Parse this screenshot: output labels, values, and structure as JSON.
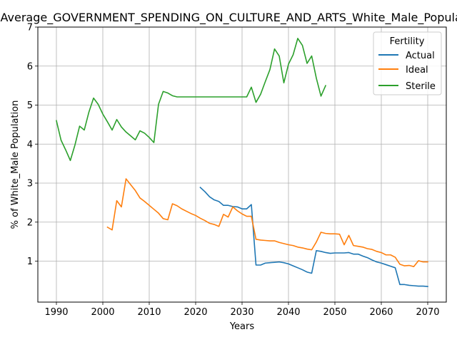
{
  "chart_data": {
    "type": "line",
    "title": "Average_GOVERNMENT_SPENDING_ON_CULTURE_AND_ARTS_White_Male_Population",
    "xlabel": "Years",
    "ylabel": "% of White_Male Population",
    "xlim": [
      1986,
      2074
    ],
    "ylim": [
      -0.05,
      7.0
    ],
    "xticks": [
      1990,
      2000,
      2010,
      2020,
      2030,
      2040,
      2050,
      2060,
      2070
    ],
    "yticks": [
      1,
      2,
      3,
      4,
      5,
      6,
      7
    ],
    "grid": true,
    "legend": {
      "title": "Fertility",
      "placement": "top-right"
    },
    "series": [
      {
        "name": "Actual",
        "color": "#1f77b4",
        "x": [
          2021,
          2022,
          2023,
          2024,
          2025,
          2026,
          2027,
          2028,
          2029,
          2030,
          2031,
          2032,
          2033,
          2034,
          2035,
          2036,
          2037,
          2038,
          2039,
          2040,
          2041,
          2042,
          2043,
          2044,
          2045,
          2046,
          2047,
          2048,
          2049,
          2050,
          2051,
          2052,
          2053,
          2054,
          2055,
          2056,
          2057,
          2058,
          2059,
          2060,
          2061,
          2062,
          2063,
          2064,
          2065,
          2066,
          2067,
          2068,
          2069,
          2070
        ],
        "values": [
          2.89,
          2.78,
          2.65,
          2.57,
          2.53,
          2.43,
          2.43,
          2.4,
          2.39,
          2.34,
          2.34,
          2.45,
          0.9,
          0.9,
          0.95,
          0.96,
          0.97,
          0.98,
          0.96,
          0.93,
          0.88,
          0.83,
          0.78,
          0.72,
          0.69,
          1.27,
          1.25,
          1.22,
          1.2,
          1.21,
          1.21,
          1.21,
          1.22,
          1.18,
          1.18,
          1.13,
          1.09,
          1.03,
          0.98,
          0.95,
          0.91,
          0.87,
          0.83,
          0.4,
          0.4,
          0.38,
          0.37,
          0.36,
          0.36,
          0.35
        ]
      },
      {
        "name": "Ideal",
        "color": "#ff7f0e",
        "x": [
          2001,
          2002,
          2003,
          2004,
          2005,
          2006,
          2007,
          2008,
          2009,
          2010,
          2011,
          2012,
          2013,
          2014,
          2015,
          2016,
          2017,
          2018,
          2019,
          2020,
          2021,
          2022,
          2023,
          2024,
          2025,
          2026,
          2027,
          2028,
          2029,
          2030,
          2031,
          2032,
          2033,
          2034,
          2035,
          2036,
          2037,
          2038,
          2039,
          2040,
          2041,
          2042,
          2043,
          2044,
          2045,
          2046,
          2047,
          2048,
          2049,
          2050,
          2051,
          2052,
          2053,
          2054,
          2055,
          2056,
          2057,
          2058,
          2059,
          2060,
          2061,
          2062,
          2063,
          2064,
          2065,
          2066,
          2067,
          2068,
          2069,
          2070
        ],
        "values": [
          1.87,
          1.8,
          2.55,
          2.39,
          3.11,
          2.96,
          2.81,
          2.62,
          2.53,
          2.43,
          2.33,
          2.23,
          2.09,
          2.06,
          2.47,
          2.42,
          2.34,
          2.28,
          2.22,
          2.17,
          2.1,
          2.04,
          1.97,
          1.94,
          1.89,
          2.2,
          2.13,
          2.39,
          2.29,
          2.21,
          2.15,
          2.15,
          1.56,
          1.54,
          1.53,
          1.52,
          1.52,
          1.48,
          1.45,
          1.42,
          1.4,
          1.36,
          1.34,
          1.31,
          1.29,
          1.49,
          1.74,
          1.71,
          1.7,
          1.7,
          1.69,
          1.42,
          1.66,
          1.4,
          1.38,
          1.36,
          1.32,
          1.3,
          1.25,
          1.22,
          1.16,
          1.16,
          1.1,
          0.92,
          0.88,
          0.89,
          0.86,
          1.01,
          0.98,
          0.98
        ]
      },
      {
        "name": "Sterile",
        "color": "#2ca02c",
        "x": [
          1990,
          1991,
          1992,
          1993,
          1994,
          1995,
          1996,
          1997,
          1998,
          1999,
          2000,
          2001,
          2002,
          2003,
          2004,
          2005,
          2006,
          2007,
          2008,
          2009,
          2010,
          2011,
          2012,
          2013,
          2014,
          2015,
          2016,
          2017,
          2018,
          2019,
          2020,
          2021,
          2022,
          2023,
          2024,
          2025,
          2026,
          2027,
          2028,
          2029,
          2030,
          2031,
          2032,
          2033,
          2034,
          2035,
          2036,
          2037,
          2038,
          2039,
          2040,
          2041,
          2042,
          2043,
          2044,
          2045,
          2046,
          2047,
          2048
        ],
        "values": [
          4.6,
          4.1,
          3.85,
          3.58,
          3.98,
          4.46,
          4.36,
          4.82,
          5.18,
          5.02,
          4.77,
          4.57,
          4.36,
          4.63,
          4.44,
          4.31,
          4.21,
          4.11,
          4.34,
          4.28,
          4.17,
          4.04,
          5.02,
          5.35,
          5.31,
          5.24,
          5.21,
          5.21,
          5.21,
          5.21,
          5.21,
          5.21,
          5.21,
          5.21,
          5.21,
          5.21,
          5.21,
          5.21,
          5.21,
          5.21,
          5.21,
          5.21,
          5.46,
          5.07,
          5.28,
          5.6,
          5.91,
          6.44,
          6.26,
          5.57,
          6.05,
          6.29,
          6.71,
          6.53,
          6.07,
          6.26,
          5.69,
          5.23,
          5.5
        ]
      }
    ]
  }
}
